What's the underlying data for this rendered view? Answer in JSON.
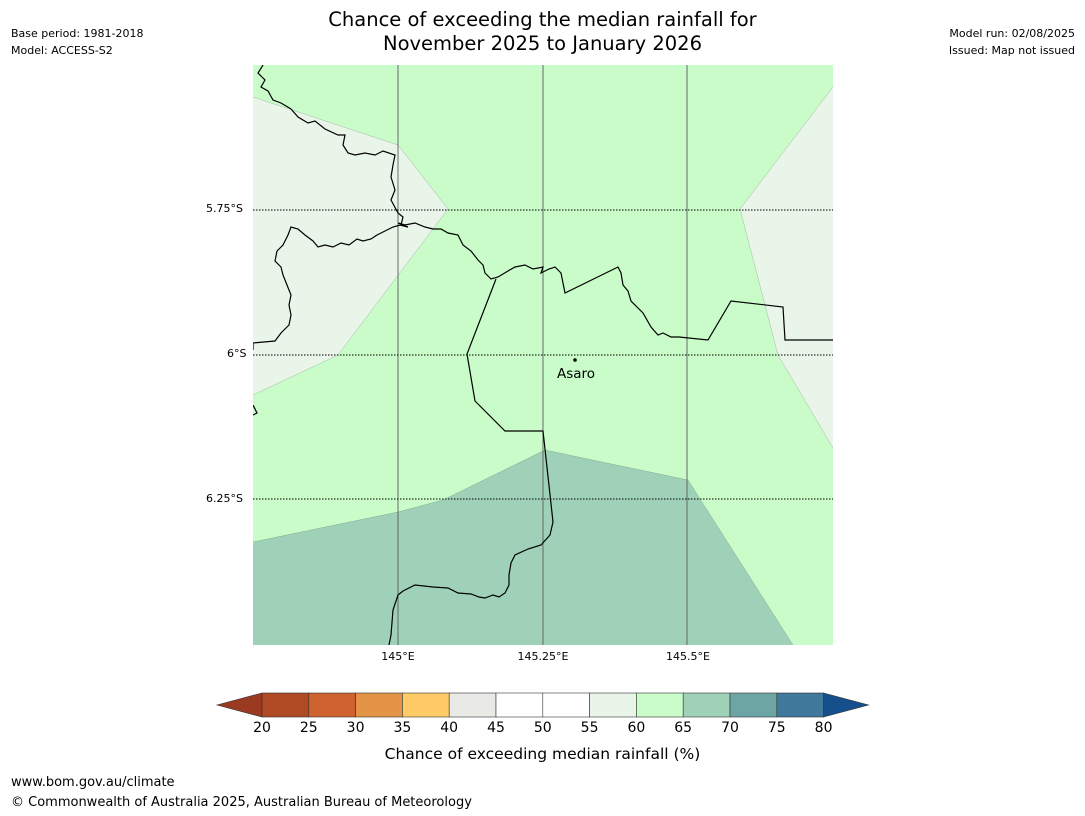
{
  "header": {
    "title_line1": "Chance of exceeding the median rainfall for",
    "title_line2": "November 2025 to January 2026",
    "base_period": "Base period: 1981-2018",
    "model": "Model: ACCESS-S2",
    "model_run": "Model run: 02/08/2025",
    "issued": "Issued: Map not issued"
  },
  "map": {
    "lat_labels": [
      "5.75°S",
      "6°S",
      "6.25°S"
    ],
    "lon_labels": [
      "145°E",
      "145.25°E",
      "145.5°E"
    ],
    "place": "Asaro",
    "region_colors": {
      "55-60": "#e9f5e9",
      "60-65": "#c9fcc9",
      "65-70": "#9fd1b9"
    }
  },
  "colorbar": {
    "label": "Chance of exceeding median rainfall (%)",
    "ticks": [
      "20",
      "25",
      "30",
      "35",
      "40",
      "45",
      "50",
      "55",
      "60",
      "65",
      "70",
      "75",
      "80"
    ],
    "colors": [
      "#b04a25",
      "#ce6330",
      "#e39446",
      "#fecb66",
      "#e9e9e5",
      "#ffffff",
      "#ffffff",
      "#e9f5e9",
      "#c9fcc9",
      "#9fd1b9",
      "#6da4a4",
      "#3f7a9c"
    ],
    "under_color": "#9a3a20",
    "over_color": "#16508c"
  },
  "footer": {
    "url": "www.bom.gov.au/climate",
    "copyright": "© Commonwealth of Australia 2025, Australian Bureau of Meteorology"
  }
}
